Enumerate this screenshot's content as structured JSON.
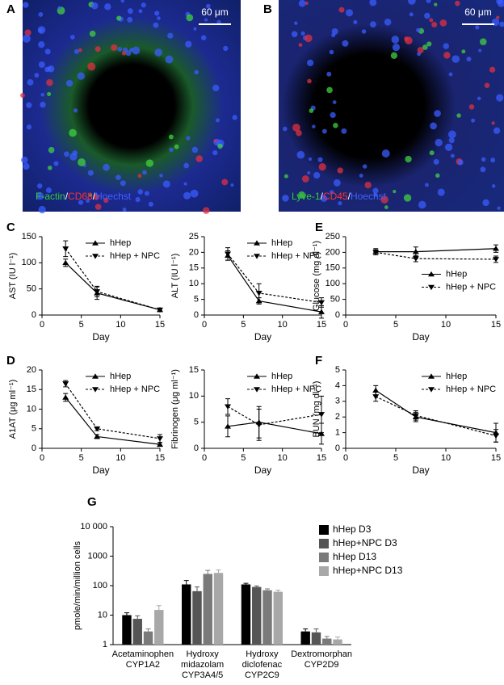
{
  "images": [
    {
      "panel": "A",
      "scale": "60 μm",
      "caption": [
        {
          "text": "F-actin",
          "color": "#33cc33"
        },
        {
          "text": "/",
          "color": "#ffffff"
        },
        {
          "text": "CD68",
          "color": "#ff3030"
        },
        {
          "text": "/",
          "color": "#ffffff"
        },
        {
          "text": "Hoechst",
          "color": "#4060ff"
        }
      ]
    },
    {
      "panel": "B",
      "scale": "60 μm",
      "caption": [
        {
          "text": "Lyve-1",
          "color": "#33cc33"
        },
        {
          "text": "/",
          "color": "#ffffff"
        },
        {
          "text": "CD45",
          "color": "#ff3030"
        },
        {
          "text": "/",
          "color": "#ffffff"
        },
        {
          "text": "Hoechst",
          "color": "#4060ff"
        }
      ]
    }
  ],
  "chart_data": [
    {
      "type": "line",
      "panel": "C",
      "ylabel": "AST (IU l⁻¹)",
      "xlabel": "Day",
      "x": [
        3,
        7,
        15
      ],
      "xlim": [
        0,
        15
      ],
      "xticks": [
        0,
        5,
        10,
        15
      ],
      "ylim": [
        0,
        150
      ],
      "yticks": [
        0,
        50,
        100,
        150
      ],
      "legend": "upper right",
      "series": [
        {
          "name": "hHep",
          "color": "#000000",
          "linestyle": "solid",
          "marker": "triangle-up",
          "values": [
            100,
            42,
            10
          ],
          "errors": [
            7,
            12,
            2
          ]
        },
        {
          "name": "hHep + NPC",
          "color": "#000000",
          "linestyle": "dashed",
          "marker": "triangle-down",
          "values": [
            127,
            45,
            10
          ],
          "errors": [
            15,
            10,
            2
          ]
        }
      ]
    },
    {
      "type": "line",
      "ylabel": "ALT (IU l⁻¹)",
      "xlabel": "Day",
      "x": [
        3,
        7,
        15
      ],
      "xlim": [
        0,
        15
      ],
      "xticks": [
        0,
        5,
        10,
        15
      ],
      "ylim": [
        0,
        25
      ],
      "yticks": [
        0,
        5,
        10,
        15,
        20,
        25
      ],
      "legend": "upper right",
      "series": [
        {
          "name": "hHep",
          "color": "#000000",
          "linestyle": "solid",
          "marker": "triangle-up",
          "values": [
            19,
            4.5,
            1
          ],
          "errors": [
            1.5,
            1,
            2
          ]
        },
        {
          "name": "hHep + NPC",
          "color": "#000000",
          "linestyle": "dashed",
          "marker": "triangle-down",
          "values": [
            19.5,
            7,
            4
          ],
          "errors": [
            2,
            3,
            1.5
          ]
        }
      ]
    },
    {
      "type": "line",
      "panel": "E",
      "ylabel": "Glucose (mg dl⁻¹)",
      "xlabel": "Day",
      "x": [
        3,
        7,
        15
      ],
      "xlim": [
        0,
        15
      ],
      "xticks": [
        0,
        5,
        10,
        15
      ],
      "ylim": [
        0,
        250
      ],
      "yticks": [
        0,
        50,
        100,
        150,
        200,
        250
      ],
      "legend": "center right",
      "series": [
        {
          "name": "hHep",
          "color": "#000000",
          "linestyle": "solid",
          "marker": "triangle-up",
          "values": [
            202,
            202,
            212
          ],
          "errors": [
            10,
            15,
            12
          ]
        },
        {
          "name": "hHep + NPC",
          "color": "#000000",
          "linestyle": "dashed",
          "marker": "triangle-down",
          "values": [
            200,
            180,
            178
          ],
          "errors": [
            8,
            10,
            10
          ]
        }
      ]
    },
    {
      "type": "line",
      "panel": "D",
      "ylabel": "A1AT (μg ml⁻¹)",
      "xlabel": "Day",
      "x": [
        3,
        7,
        15
      ],
      "xlim": [
        0,
        15
      ],
      "xticks": [
        0,
        5,
        10,
        15
      ],
      "ylim": [
        0,
        20
      ],
      "yticks": [
        0,
        5,
        10,
        15,
        20
      ],
      "legend": "upper right",
      "series": [
        {
          "name": "hHep",
          "color": "#000000",
          "linestyle": "solid",
          "marker": "triangle-up",
          "values": [
            13,
            3,
            1
          ],
          "errors": [
            1,
            0.5,
            0.5
          ]
        },
        {
          "name": "hHep + NPC",
          "color": "#000000",
          "linestyle": "dashed",
          "marker": "triangle-down",
          "values": [
            16.5,
            5,
            2.5
          ],
          "errors": [
            0.8,
            0.5,
            1
          ]
        }
      ]
    },
    {
      "type": "line",
      "ylabel": "Fibrinogen (μg ml⁻¹)",
      "xlabel": "Day",
      "x": [
        3,
        7,
        15
      ],
      "xlim": [
        0,
        15
      ],
      "xticks": [
        0,
        5,
        10,
        15
      ],
      "ylim": [
        0,
        15
      ],
      "yticks": [
        0,
        5,
        10,
        15
      ],
      "legend": "upper right",
      "series": [
        {
          "name": "hHep",
          "color": "#000000",
          "linestyle": "solid",
          "marker": "triangle-up",
          "values": [
            4.2,
            5,
            2.8
          ],
          "errors": [
            2,
            3,
            2
          ]
        },
        {
          "name": "hHep + NPC",
          "color": "#000000",
          "linestyle": "dashed",
          "marker": "triangle-down",
          "values": [
            8,
            4.5,
            6.5
          ],
          "errors": [
            1.5,
            3,
            3.5
          ]
        }
      ]
    },
    {
      "type": "line",
      "panel": "F",
      "ylabel": "BUN (mg dl⁻¹)",
      "xlabel": "Day",
      "x": [
        3,
        7,
        15
      ],
      "xlim": [
        0,
        15
      ],
      "xticks": [
        0,
        5,
        10,
        15
      ],
      "ylim": [
        0,
        5
      ],
      "yticks": [
        0,
        1,
        2,
        3,
        4,
        5
      ],
      "legend": "upper right",
      "series": [
        {
          "name": "hHep",
          "color": "#000000",
          "linestyle": "solid",
          "marker": "triangle-up",
          "values": [
            3.7,
            2,
            1
          ],
          "errors": [
            0.3,
            0.3,
            0.6
          ]
        },
        {
          "name": "hHep + NPC",
          "color": "#000000",
          "linestyle": "dashed",
          "marker": "triangle-down",
          "values": [
            3.3,
            2.1,
            0.8
          ],
          "errors": [
            0.3,
            0.3,
            0.4
          ]
        }
      ]
    },
    {
      "type": "bar",
      "panel": "G",
      "ylabel": "pmole/min/million cells",
      "log": true,
      "ylim": [
        1,
        10000
      ],
      "yticks": [
        1,
        10,
        100,
        1000,
        {
          "value": 10000,
          "label": "10 000"
        }
      ],
      "legend": "upper right",
      "categories": [
        [
          "Acetaminophen",
          "CYP1A2"
        ],
        [
          "Hydroxy",
          "midazolam",
          "CYP3A4/5"
        ],
        [
          "Hydroxy",
          "diclofenac",
          "CYP2C9"
        ],
        [
          "Dextromorphan",
          "CYP2D9"
        ]
      ],
      "series": [
        {
          "name": "hHep D3",
          "color": "#000000",
          "values": [
            10,
            110,
            110,
            2.8
          ],
          "errors": [
            2,
            40,
            10,
            0.6
          ]
        },
        {
          "name": "hHep+NPC D3",
          "color": "#555555",
          "values": [
            7.5,
            65,
            90,
            2.6
          ],
          "errors": [
            2,
            25,
            8,
            0.8
          ]
        },
        {
          "name": "hHep D13",
          "color": "#7a7a7a",
          "values": [
            2.8,
            250,
            70,
            1.6
          ],
          "errors": [
            0.6,
            80,
            8,
            0.3
          ]
        },
        {
          "name": "hHep+NPC D13",
          "color": "#a8a8a8",
          "values": [
            15,
            270,
            62,
            1.5
          ],
          "errors": [
            6,
            70,
            8,
            0.3
          ]
        }
      ]
    }
  ]
}
